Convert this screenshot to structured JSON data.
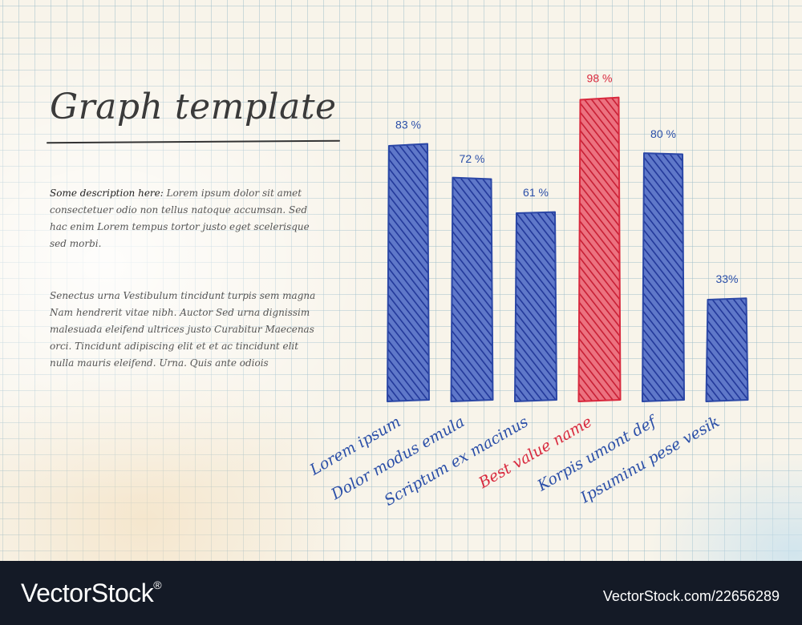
{
  "header": {
    "title": "Graph template",
    "description_lead": "Some description here:",
    "description_1": " Lorem ipsum dolor sit amet consectetuer odio non tellus natoque accumsan. Sed hac enim Lorem tempus tortor justo eget scelerisque sed morbi.",
    "description_2": "Senectus urna Vestibulum tincidunt turpis sem magna Nam hendrerit vitae nibh. Auctor Sed urna dignissim malesuada eleifend ultrices justo Curabitur Maecenas orci. Tincidunt adipiscing elit et et ac tincidunt elit nulla mauris eleifend. Urna. Quis ante odiois"
  },
  "chart_data": {
    "type": "bar",
    "categories": [
      "Lorem ipsum",
      "Dolor modus emula",
      "Scriptum ex macinus",
      "Best value name",
      "Korpis umont def",
      "Ipsuminu pese vesik"
    ],
    "values": [
      83,
      72,
      61,
      98,
      80,
      33
    ],
    "data_labels": [
      "83 %",
      "72 %",
      "61 %",
      "98 %",
      "80 %",
      "33%"
    ],
    "highlight_index": 3,
    "ylim": [
      0,
      100
    ],
    "grid": true,
    "xlabel": "",
    "ylabel": "",
    "colors": {
      "bar": "#2b47a6",
      "highlight": "#d8283d",
      "label": "#2b4fa8",
      "highlight_label": "#d8283d"
    }
  },
  "footer": {
    "brand_name": "VectorStock",
    "brand_mark": "®",
    "brand_domain": "VectorStock.com/22656289"
  }
}
